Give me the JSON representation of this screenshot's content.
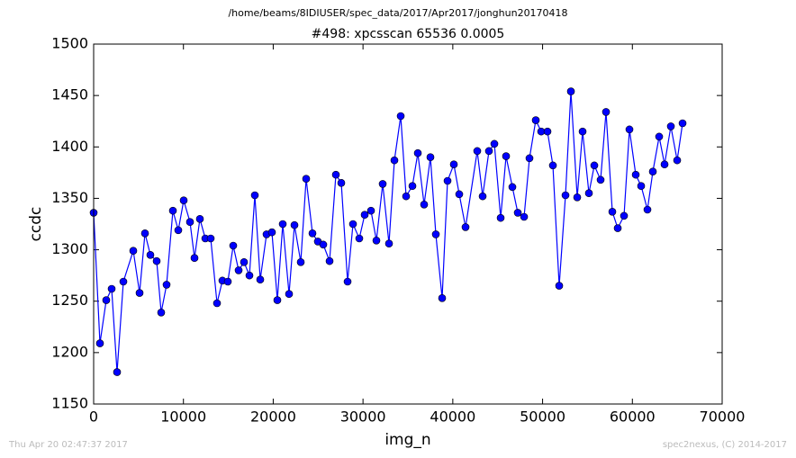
{
  "chart_data": {
    "type": "line",
    "suptitle": "/home/beams/8IDIUSER/spec_data/2017/Apr2017/jonghun20170418",
    "title": "#498: xpcsscan 65536 0.0005",
    "xlabel": "img_n",
    "ylabel": "ccdc",
    "footer_left": "Thu Apr 20 02:47:37 2017",
    "footer_right": "spec2nexus, (C) 2014-2017",
    "x": [
      0,
      702,
      1404,
      2006,
      2608,
      3310,
      4413,
      5115,
      5717,
      6318,
      7020,
      7522,
      8123,
      8826,
      9427,
      10029,
      10731,
      11232,
      11834,
      12436,
      13038,
      13740,
      14341,
      14943,
      15545,
      16147,
      16748,
      17350,
      17952,
      18554,
      19256,
      19857,
      20459,
      21061,
      21763,
      22365,
      23067,
      23668,
      24370,
      24972,
      25574,
      26276,
      26978,
      27580,
      28282,
      28884,
      29586,
      30187,
      30889,
      31491,
      32193,
      32895,
      33497,
      34199,
      34800,
      35503,
      36104,
      36806,
      37508,
      38110,
      38812,
      39414,
      40116,
      40718,
      41420,
      42723,
      43325,
      44027,
      44629,
      45331,
      45933,
      46635,
      47237,
      47939,
      48540,
      49242,
      49844,
      50546,
      51148,
      51850,
      52552,
      53154,
      53856,
      54457,
      55159,
      55761,
      56463,
      57065,
      57767,
      58369,
      59071,
      59673,
      60375,
      60976,
      61678,
      62280,
      62982,
      63584,
      64286,
      64988,
      65590
    ],
    "series": [
      {
        "name": "ccdc",
        "color": "#0000ff",
        "marker": "o",
        "values": [
          1336,
          1209,
          1251,
          1262,
          1181,
          1269,
          1299,
          1258,
          1316,
          1295,
          1289,
          1239,
          1266,
          1338,
          1319,
          1348,
          1327,
          1292,
          1330,
          1311,
          1311,
          1248,
          1270,
          1269,
          1304,
          1280,
          1288,
          1275,
          1353,
          1271,
          1315,
          1317,
          1251,
          1325,
          1257,
          1324,
          1288,
          1369,
          1316,
          1308,
          1305,
          1289,
          1373,
          1365,
          1269,
          1325,
          1311,
          1334,
          1338,
          1309,
          1364,
          1306,
          1387,
          1430,
          1352,
          1362,
          1394,
          1344,
          1390,
          1315,
          1253,
          1367,
          1383,
          1354,
          1322,
          1396,
          1352,
          1396,
          1403,
          1331,
          1391,
          1361,
          1336,
          1332,
          1389,
          1426,
          1415,
          1415,
          1382,
          1265,
          1353,
          1454,
          1351,
          1415,
          1355,
          1382,
          1368,
          1434,
          1337,
          1321,
          1333,
          1417,
          1373,
          1362,
          1339,
          1376,
          1410,
          1383,
          1420,
          1387,
          1423
        ]
      }
    ],
    "xlim": [
      0,
      70000
    ],
    "xticks": [
      0,
      10000,
      20000,
      30000,
      40000,
      50000,
      60000,
      70000
    ],
    "ylim": [
      1150,
      1500
    ],
    "yticks": [
      1150,
      1200,
      1250,
      1300,
      1350,
      1400,
      1450,
      1500
    ],
    "grid": false,
    "legend": false
  }
}
